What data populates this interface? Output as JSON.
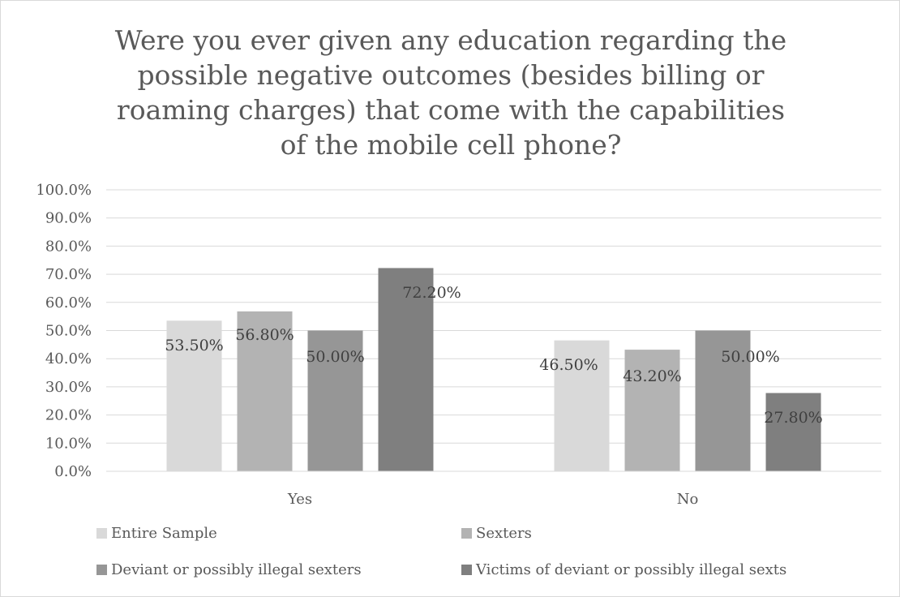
{
  "chart_data": {
    "type": "bar",
    "title_lines": [
      "Were you ever given any education regarding the",
      "possible negative outcomes (besides billing or",
      "roaming charges) that come with the capabilities",
      "of the mobile cell phone?"
    ],
    "categories": [
      "Yes",
      "No"
    ],
    "series": [
      {
        "name": "Entire Sample",
        "values": [
          53.5,
          46.5
        ],
        "labels": [
          "53.50%",
          "46.50%"
        ],
        "color": "#d9d9d9"
      },
      {
        "name": "Sexters",
        "values": [
          56.8,
          43.2
        ],
        "labels": [
          "56.80%",
          "43.20%"
        ],
        "color": "#b3b3b3"
      },
      {
        "name": "Deviant or possibly illegal sexters",
        "values": [
          50.0,
          50.0
        ],
        "labels": [
          "50.00%",
          "50.00%"
        ],
        "color": "#969696"
      },
      {
        "name": "Victims of deviant or possibly illegal sexts",
        "values": [
          72.2,
          27.8
        ],
        "labels": [
          "72.20%",
          "27.80%"
        ],
        "color": "#7f7f7f"
      }
    ],
    "ylim": [
      0,
      100
    ],
    "y_ticks": [
      "0.0%",
      "10.0%",
      "20.0%",
      "30.0%",
      "40.0%",
      "50.0%",
      "60.0%",
      "70.0%",
      "80.0%",
      "90.0%",
      "100.0%"
    ],
    "grid": true,
    "legend_position": "bottom"
  }
}
